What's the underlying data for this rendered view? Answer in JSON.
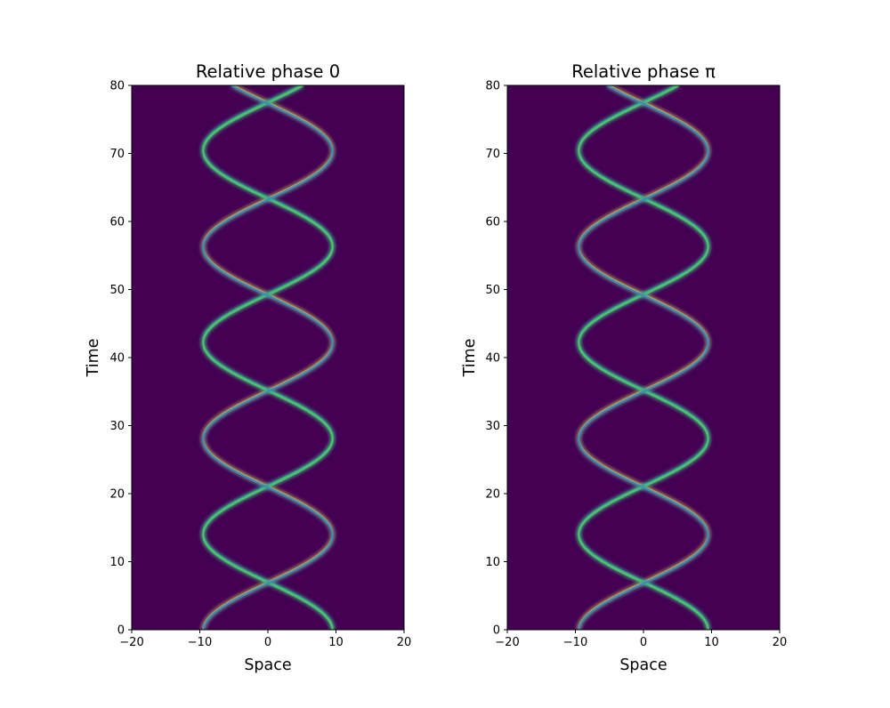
{
  "chart_data": [
    {
      "type": "heatmap",
      "title": "Relative phase 0",
      "xlabel": "Space",
      "ylabel": "Time",
      "xlim": [
        -20,
        20
      ],
      "ylim": [
        0,
        80
      ],
      "xticks": [
        "−20",
        "−10",
        "0",
        "10",
        "20"
      ],
      "yticks": [
        "0",
        "10",
        "20",
        "30",
        "40",
        "50",
        "60",
        "70",
        "80"
      ],
      "colormap": "viridis",
      "background_color": "#440154",
      "grid": false,
      "legend": "none",
      "series": [
        {
          "color": "#f5a623",
          "amplitude": 9.5,
          "period": 28.2,
          "phase_t": 7
        },
        {
          "color": "#2aa7a0",
          "amplitude": 9.5,
          "period": 28.2,
          "phase_t": -7
        },
        {
          "color": "#4ec36a",
          "amplitude": 9.5,
          "period": 28.2,
          "phase_t": 21
        },
        {
          "color": "#3b8bb8",
          "amplitude": 9.5,
          "period": 28.2,
          "phase_t": 35
        }
      ]
    },
    {
      "type": "heatmap",
      "title": "Relative phase π",
      "xlabel": "Space",
      "ylabel": "Time",
      "xlim": [
        -20,
        20
      ],
      "ylim": [
        0,
        80
      ],
      "xticks": [
        "−20",
        "−10",
        "0",
        "10",
        "20"
      ],
      "yticks": [
        "0",
        "10",
        "20",
        "30",
        "40",
        "50",
        "60",
        "70",
        "80"
      ],
      "colormap": "viridis",
      "background_color": "#440154",
      "grid": false,
      "legend": "none",
      "series": [
        {
          "color": "#f5a623",
          "amplitude": 9.5,
          "period": 28.2,
          "phase_t": 7
        },
        {
          "color": "#2aa7a0",
          "amplitude": 9.5,
          "period": 28.2,
          "phase_t": -7
        },
        {
          "color": "#4ec36a",
          "amplitude": 9.5,
          "period": 28.2,
          "phase_t": 21
        },
        {
          "color": "#3b8bb8",
          "amplitude": 9.5,
          "period": 28.2,
          "phase_t": 35
        }
      ]
    }
  ]
}
